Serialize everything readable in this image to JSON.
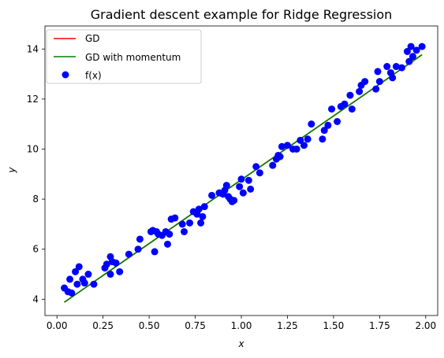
{
  "chart_data": {
    "type": "scatter",
    "title": "Gradient descent example for Ridge Regression",
    "xlabel": "x",
    "ylabel": "y",
    "xlim": [
      -0.065,
      2.065
    ],
    "ylim": [
      3.35,
      14.92
    ],
    "xticks": [
      "0.00",
      "0.25",
      "0.50",
      "0.75",
      "1.00",
      "1.25",
      "1.50",
      "1.75",
      "2.00"
    ],
    "xtick_values": [
      0,
      0.25,
      0.5,
      0.75,
      1.0,
      1.25,
      1.5,
      1.75,
      2.0
    ],
    "yticks": [
      "4",
      "6",
      "8",
      "10",
      "12",
      "14"
    ],
    "ytick_values": [
      4,
      6,
      8,
      10,
      12,
      14
    ],
    "grid": false,
    "legend_position": "upper-left",
    "colors": {
      "gd": "#ff0000",
      "gd_momentum": "#008000",
      "points": "#0000ff"
    },
    "series": [
      {
        "name": "GD",
        "type": "line",
        "x": [
          0.04,
          1.98
        ],
        "y": [
          3.88,
          13.77
        ]
      },
      {
        "name": "GD with momentum",
        "type": "line",
        "x": [
          0.04,
          1.98
        ],
        "y": [
          3.88,
          13.77
        ]
      },
      {
        "name": "f(x)",
        "type": "scatter",
        "x": [
          0.04,
          0.06,
          0.07,
          0.08,
          0.1,
          0.11,
          0.12,
          0.14,
          0.15,
          0.17,
          0.2,
          0.26,
          0.27,
          0.29,
          0.29,
          0.3,
          0.32,
          0.34,
          0.39,
          0.44,
          0.45,
          0.51,
          0.52,
          0.53,
          0.54,
          0.55,
          0.57,
          0.59,
          0.6,
          0.61,
          0.62,
          0.64,
          0.68,
          0.69,
          0.72,
          0.74,
          0.76,
          0.77,
          0.78,
          0.79,
          0.8,
          0.84,
          0.88,
          0.9,
          0.91,
          0.92,
          0.93,
          0.94,
          0.95,
          0.96,
          0.99,
          1.0,
          1.01,
          1.04,
          1.05,
          1.08,
          1.1,
          1.17,
          1.19,
          1.2,
          1.21,
          1.22,
          1.25,
          1.28,
          1.3,
          1.32,
          1.34,
          1.36,
          1.38,
          1.44,
          1.45,
          1.47,
          1.49,
          1.52,
          1.54,
          1.56,
          1.59,
          1.6,
          1.64,
          1.65,
          1.67,
          1.73,
          1.74,
          1.75,
          1.79,
          1.81,
          1.82,
          1.84,
          1.87,
          1.9,
          1.91,
          1.92,
          1.93,
          1.95,
          1.98
        ],
        "y": [
          4.45,
          4.3,
          4.8,
          4.25,
          5.1,
          4.6,
          5.3,
          4.8,
          4.65,
          5.0,
          4.6,
          5.25,
          5.4,
          5.0,
          5.7,
          5.5,
          5.45,
          5.1,
          5.8,
          6.0,
          6.4,
          6.7,
          6.75,
          5.9,
          6.7,
          6.6,
          6.55,
          6.7,
          6.2,
          6.6,
          7.2,
          7.25,
          7.0,
          6.7,
          7.05,
          7.5,
          7.4,
          7.6,
          7.05,
          7.3,
          7.7,
          8.15,
          8.25,
          8.2,
          8.35,
          8.55,
          8.1,
          8.0,
          7.9,
          7.95,
          8.5,
          8.8,
          8.25,
          8.75,
          8.4,
          9.3,
          9.05,
          9.35,
          9.6,
          9.75,
          9.7,
          10.1,
          10.15,
          10.0,
          10.0,
          10.35,
          10.15,
          10.4,
          11.0,
          10.4,
          10.75,
          10.95,
          11.6,
          11.1,
          11.7,
          11.8,
          12.15,
          11.6,
          12.3,
          12.55,
          12.7,
          12.4,
          13.1,
          12.7,
          13.3,
          13.05,
          12.85,
          13.3,
          13.25,
          13.9,
          13.5,
          14.1,
          13.7,
          13.95,
          14.1
        ]
      }
    ]
  }
}
